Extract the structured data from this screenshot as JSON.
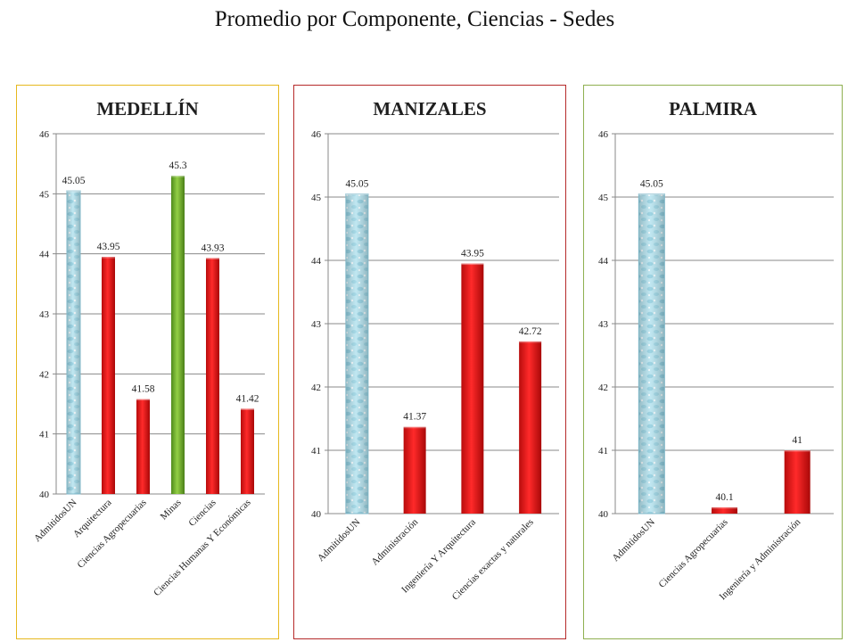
{
  "page": {
    "title": "Promedio por Componente, Ciencias - Sedes"
  },
  "chart_data": [
    {
      "type": "bar",
      "title": "MEDELLÍN",
      "border_color": "#e6b81e",
      "categories": [
        "AdmitidosUN",
        "Arquitectura",
        "Ciencias Agropecuarias",
        "Minas",
        "Ciencias",
        "Ciencias Humanas Y Económicas"
      ],
      "values": [
        45.05,
        43.95,
        41.58,
        45.3,
        43.93,
        41.42
      ],
      "value_labels": [
        "45.05",
        "43.95",
        "41.58",
        "45.3",
        "43.93",
        "41.42"
      ],
      "bar_colors": [
        "#a8dbe8",
        "#e41818",
        "#e41818",
        "#79b32d",
        "#e41818",
        "#e41818"
      ],
      "bar_styles": [
        "water",
        "solid",
        "solid",
        "solid",
        "solid",
        "solid"
      ],
      "ylim": [
        40,
        46
      ],
      "yticks": [
        "40",
        "41",
        "42",
        "43",
        "44",
        "45",
        "46"
      ],
      "grid": true,
      "xlabel": "",
      "ylabel": ""
    },
    {
      "type": "bar",
      "title": "MANIZALES",
      "border_color": "#b52a2a",
      "categories": [
        "AdmitidosUN",
        "Administración",
        "Ingeniería Y Arquitectura",
        "Ciencias exactas y naturales"
      ],
      "values": [
        45.05,
        41.37,
        43.95,
        42.72
      ],
      "value_labels": [
        "45.05",
        "41.37",
        "43.95",
        "42.72"
      ],
      "bar_colors": [
        "#a8dbe8",
        "#e41818",
        "#e41818",
        "#e41818"
      ],
      "bar_styles": [
        "water",
        "solid",
        "solid",
        "solid"
      ],
      "ylim": [
        40,
        46
      ],
      "yticks": [
        "40",
        "41",
        "42",
        "43",
        "44",
        "45",
        "46"
      ],
      "grid": true,
      "xlabel": "",
      "ylabel": ""
    },
    {
      "type": "bar",
      "title": "PALMIRA",
      "border_color": "#8fb050",
      "categories": [
        "AdmitidosUN",
        "Ciencias Agropecuarias",
        "Ingeniería y Administración"
      ],
      "values": [
        45.05,
        40.1,
        41
      ],
      "value_labels": [
        "45.05",
        "40.1",
        "41"
      ],
      "bar_colors": [
        "#a8dbe8",
        "#e41818",
        "#e41818"
      ],
      "bar_styles": [
        "water",
        "solid",
        "solid"
      ],
      "ylim": [
        40,
        46
      ],
      "yticks": [
        "40",
        "41",
        "42",
        "43",
        "44",
        "45",
        "46"
      ],
      "grid": true,
      "xlabel": "",
      "ylabel": ""
    }
  ]
}
